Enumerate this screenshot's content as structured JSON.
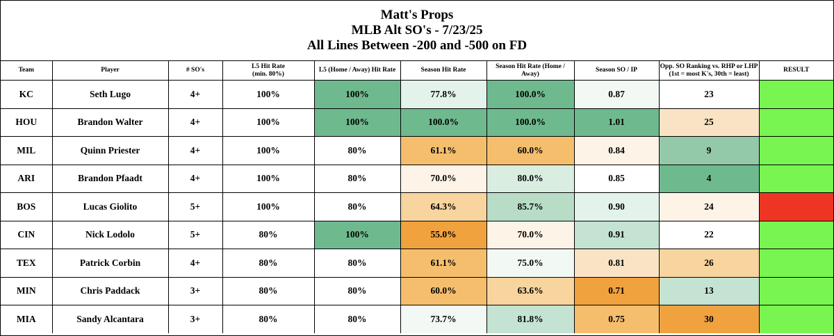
{
  "title": {
    "line1": "Matt's Props",
    "line2": "MLB Alt SO's - 7/23/25",
    "line3": "All Lines Between -200 and -500 on FD"
  },
  "headers": [
    {
      "text": "Team"
    },
    {
      "text": "Player"
    },
    {
      "text": "# SO's"
    },
    {
      "text": "L5 Hit Rate",
      "sub": "(min. 80%)"
    },
    {
      "text": "L5 (Home / Away) Hit Rate"
    },
    {
      "text": "Season Hit Rate"
    },
    {
      "text": "Season Hit Rate (Home / Away)"
    },
    {
      "text": "Season SO / IP"
    },
    {
      "text": "Opp. SO Ranking vs. RHP or LHP",
      "sub": "(1st = most K's, 30th = least)"
    },
    {
      "text": "RESULT"
    }
  ],
  "colors": {
    "green_dark": "#6fb98f",
    "green_mid": "#93c9a9",
    "green_light": "#c4e3d2",
    "green_pale": "#e3f2ea",
    "green_faint": "#f2f8f4",
    "orange_dark": "#f0a23f",
    "orange_mid": "#f5be6d",
    "orange_light": "#f8d49e",
    "orange_pale": "#fae3c4",
    "orange_faint": "#fdf3e6",
    "white": "#ffffff",
    "result_win": "#78f550",
    "result_loss": "#ee3524"
  },
  "rows": [
    {
      "team": "KC",
      "player": "Seth Lugo",
      "so": "4+",
      "l5": "100%",
      "l5ha": "100%",
      "l5ha_color": "#6fb98f",
      "season": "77.8%",
      "season_color": "#e3f2ea",
      "seasonha": "100.0%",
      "seasonha_color": "#6fb98f",
      "soip": "0.87",
      "soip_color": "#f2f8f4",
      "opp": "23",
      "opp_color": "#ffffff",
      "result_color": "#78f550"
    },
    {
      "team": "HOU",
      "player": "Brandon Walter",
      "so": "4+",
      "l5": "100%",
      "l5ha": "100%",
      "l5ha_color": "#6fb98f",
      "season": "100.0%",
      "season_color": "#6fb98f",
      "seasonha": "100.0%",
      "seasonha_color": "#6fb98f",
      "soip": "1.01",
      "soip_color": "#6fb98f",
      "opp": "25",
      "opp_color": "#fae3c4",
      "result_color": "#78f550"
    },
    {
      "team": "MIL",
      "player": "Quinn Priester",
      "so": "4+",
      "l5": "100%",
      "l5ha": "80%",
      "l5ha_color": "#ffffff",
      "season": "61.1%",
      "season_color": "#f5be6d",
      "seasonha": "60.0%",
      "seasonha_color": "#f5be6d",
      "soip": "0.84",
      "soip_color": "#fdf3e6",
      "opp": "9",
      "opp_color": "#93c9a9",
      "result_color": "#78f550"
    },
    {
      "team": "ARI",
      "player": "Brandon Pfaadt",
      "so": "4+",
      "l5": "100%",
      "l5ha": "80%",
      "l5ha_color": "#ffffff",
      "season": "70.0%",
      "season_color": "#fdf3e6",
      "seasonha": "80.0%",
      "seasonha_color": "#d9ede1",
      "soip": "0.85",
      "soip_color": "#ffffff",
      "opp": "4",
      "opp_color": "#6fb98f",
      "result_color": "#78f550"
    },
    {
      "team": "BOS",
      "player": "Lucas Giolito",
      "so": "5+",
      "l5": "100%",
      "l5ha": "80%",
      "l5ha_color": "#ffffff",
      "season": "64.3%",
      "season_color": "#f8d49e",
      "seasonha": "85.7%",
      "seasonha_color": "#b8dcc6",
      "soip": "0.90",
      "soip_color": "#e3f2ea",
      "opp": "24",
      "opp_color": "#fdf3e6",
      "result_color": "#ee3524"
    },
    {
      "team": "CIN",
      "player": "Nick Lodolo",
      "so": "5+",
      "l5": "80%",
      "l5ha": "100%",
      "l5ha_color": "#6fb98f",
      "season": "55.0%",
      "season_color": "#f0a23f",
      "seasonha": "70.0%",
      "seasonha_color": "#fdf3e6",
      "soip": "0.91",
      "soip_color": "#c4e3d2",
      "opp": "22",
      "opp_color": "#ffffff",
      "result_color": "#78f550"
    },
    {
      "team": "TEX",
      "player": "Patrick Corbin",
      "so": "4+",
      "l5": "80%",
      "l5ha": "80%",
      "l5ha_color": "#ffffff",
      "season": "61.1%",
      "season_color": "#f5be6d",
      "seasonha": "75.0%",
      "seasonha_color": "#f2f8f4",
      "soip": "0.81",
      "soip_color": "#fae3c4",
      "opp": "26",
      "opp_color": "#f8d49e",
      "result_color": "#78f550"
    },
    {
      "team": "MIN",
      "player": "Chris Paddack",
      "so": "3+",
      "l5": "80%",
      "l5ha": "80%",
      "l5ha_color": "#ffffff",
      "season": "60.0%",
      "season_color": "#f5be6d",
      "seasonha": "63.6%",
      "seasonha_color": "#f8d49e",
      "soip": "0.71",
      "soip_color": "#f0a23f",
      "opp": "13",
      "opp_color": "#c4e3d2",
      "result_color": "#78f550"
    },
    {
      "team": "MIA",
      "player": "Sandy Alcantara",
      "so": "3+",
      "l5": "80%",
      "l5ha": "80%",
      "l5ha_color": "#ffffff",
      "season": "73.7%",
      "season_color": "#f2f8f4",
      "seasonha": "81.8%",
      "seasonha_color": "#c4e3d2",
      "soip": "0.75",
      "soip_color": "#f5be6d",
      "opp": "30",
      "opp_color": "#f0a23f",
      "result_color": "#78f550"
    }
  ]
}
